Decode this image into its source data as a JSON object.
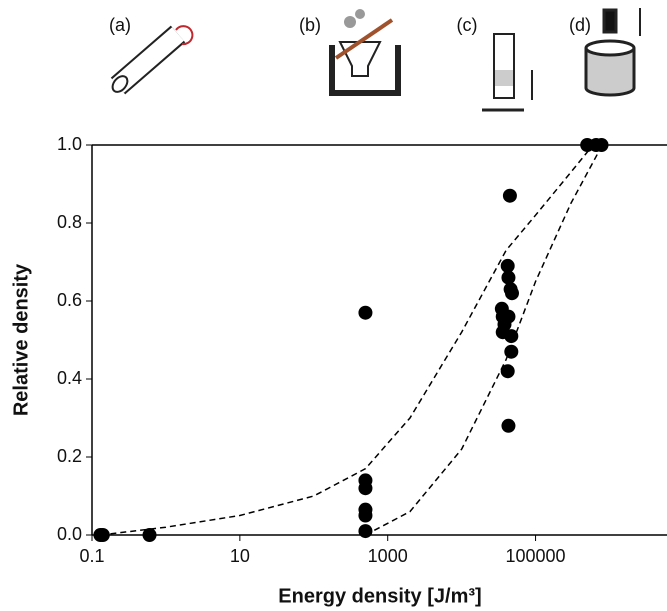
{
  "chart_data": {
    "type": "scatter",
    "panels": [
      "(a)",
      "(b)",
      "(c)",
      "(d)"
    ],
    "x_label": "Energy density [J/m³]",
    "y_label": "Relative density",
    "log_x": true,
    "xlim": [
      0.1,
      6000000
    ],
    "xticks": [
      0.1,
      10,
      1000,
      100000
    ],
    "ylim": [
      0,
      1
    ],
    "yticks": [
      {
        "value": 0,
        "label": "0.0"
      },
      {
        "value": 0.2,
        "label": "0.2"
      },
      {
        "value": 0.4,
        "label": "0.4"
      },
      {
        "value": 0.6,
        "label": "0.6"
      },
      {
        "value": 0.8,
        "label": "0.8"
      },
      {
        "value": 1,
        "label": "1.0"
      }
    ],
    "series": [
      {
        "color": "#000000",
        "x": [
          0.13,
          0.14,
          0.6,
          500,
          500,
          500,
          500,
          500,
          500,
          45000,
          42000,
          43000,
          46000,
          48000,
          35000,
          36000,
          43000,
          38000,
          36000,
          47000,
          47000,
          42000,
          43000,
          500000,
          660000,
          780000
        ],
        "values": [
          0,
          0,
          0,
          0.57,
          0.14,
          0.12,
          0.065,
          0.05,
          0.01,
          0.87,
          0.69,
          0.66,
          0.63,
          0.62,
          0.58,
          0.56,
          0.56,
          0.54,
          0.52,
          0.51,
          0.47,
          0.42,
          0.28,
          1,
          1,
          1
        ]
      }
    ],
    "curves": [
      {
        "x": [
          0.13,
          1,
          10,
          100,
          500,
          2000,
          10000,
          40000,
          100000,
          300000,
          600000
        ],
        "values": [
          0,
          0.02,
          0.05,
          0.1,
          0.17,
          0.3,
          0.52,
          0.73,
          0.82,
          0.93,
          1
        ]
      },
      {
        "x": [
          500,
          2000,
          10000,
          40000,
          100000,
          300000,
          800000
        ],
        "values": [
          0,
          0.06,
          0.22,
          0.45,
          0.65,
          0.85,
          1
        ]
      }
    ]
  }
}
